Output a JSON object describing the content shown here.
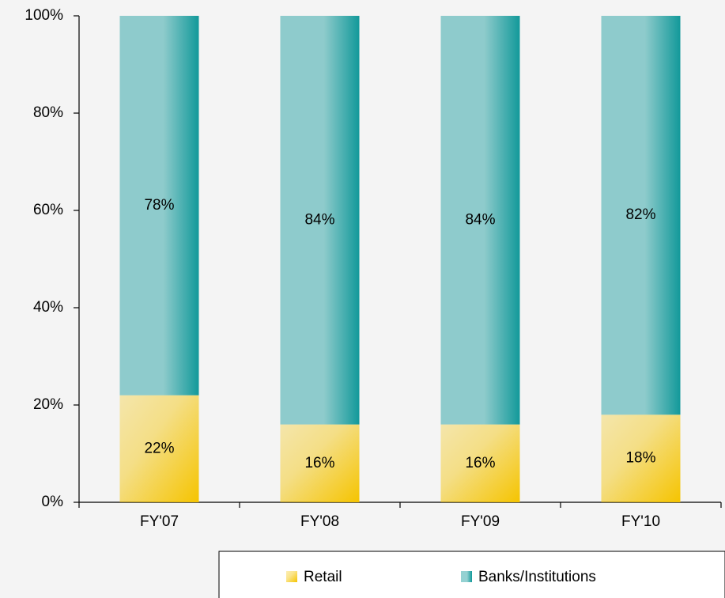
{
  "chart_data": {
    "type": "stacked_bar",
    "categories": [
      "FY'07",
      "FY'08",
      "FY'09",
      "FY'10"
    ],
    "series": [
      {
        "name": "Retail",
        "color": "#f5c400",
        "values": [
          22,
          16,
          16,
          18
        ],
        "value_labels": [
          "22%",
          "16%",
          "16%",
          "18%"
        ]
      },
      {
        "name": "Banks/Institutions",
        "color": "#12999a",
        "values": [
          78,
          84,
          84,
          82
        ],
        "value_labels": [
          "78%",
          "84%",
          "84%",
          "82%"
        ]
      }
    ],
    "ylim": [
      0,
      100
    ],
    "yticks": [
      {
        "value": 0,
        "label": "0%"
      },
      {
        "value": 20,
        "label": "20%"
      },
      {
        "value": 40,
        "label": "40%"
      },
      {
        "value": 60,
        "label": "60%"
      },
      {
        "value": 80,
        "label": "80%"
      },
      {
        "value": 100,
        "label": "100%"
      }
    ],
    "grid": false,
    "legend": "bottom"
  }
}
